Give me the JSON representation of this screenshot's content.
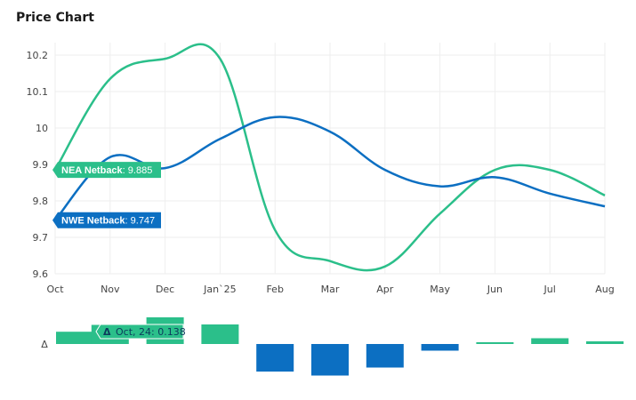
{
  "title": "Price Chart",
  "chart_data": {
    "type": "line",
    "categories": [
      "Oct",
      "Nov",
      "Dec",
      "Jan`25",
      "Feb",
      "Mar",
      "Apr",
      "May",
      "Jun",
      "Jul",
      "Aug"
    ],
    "series": [
      {
        "name": "NEA Netback",
        "color": "#2bbf8a",
        "values": [
          9.885,
          10.135,
          10.19,
          10.19,
          9.72,
          9.635,
          9.62,
          9.765,
          9.885,
          9.885,
          9.815
        ]
      },
      {
        "name": "NWE Netback",
        "color": "#0c6fc2",
        "values": [
          9.747,
          9.92,
          9.89,
          9.97,
          10.03,
          9.99,
          9.885,
          9.84,
          9.865,
          9.82,
          9.785
        ]
      }
    ],
    "ylim": [
      9.6,
      10.22
    ],
    "yticks": [
      "9.6",
      "9.7",
      "9.8",
      "9.9",
      "10",
      "10.1",
      "10.2"
    ],
    "grid": true,
    "labels": [
      {
        "series": "NEA Netback",
        "text": "NEA Netback",
        "value": "9.885"
      },
      {
        "series": "NWE Netback",
        "text": "NWE Netback",
        "value": "9.747"
      }
    ],
    "delta": {
      "axis_label": "Δ",
      "values": [
        0.138,
        0.215,
        0.3,
        0.22,
        -0.31,
        -0.355,
        -0.265,
        -0.075,
        0.02,
        0.065,
        0.03
      ],
      "positive_color": "#2bbf8a",
      "negative_color": "#0c6fc2",
      "tooltip": {
        "symbol": "Δ",
        "text": "Oct, 24: 0.138"
      }
    }
  }
}
